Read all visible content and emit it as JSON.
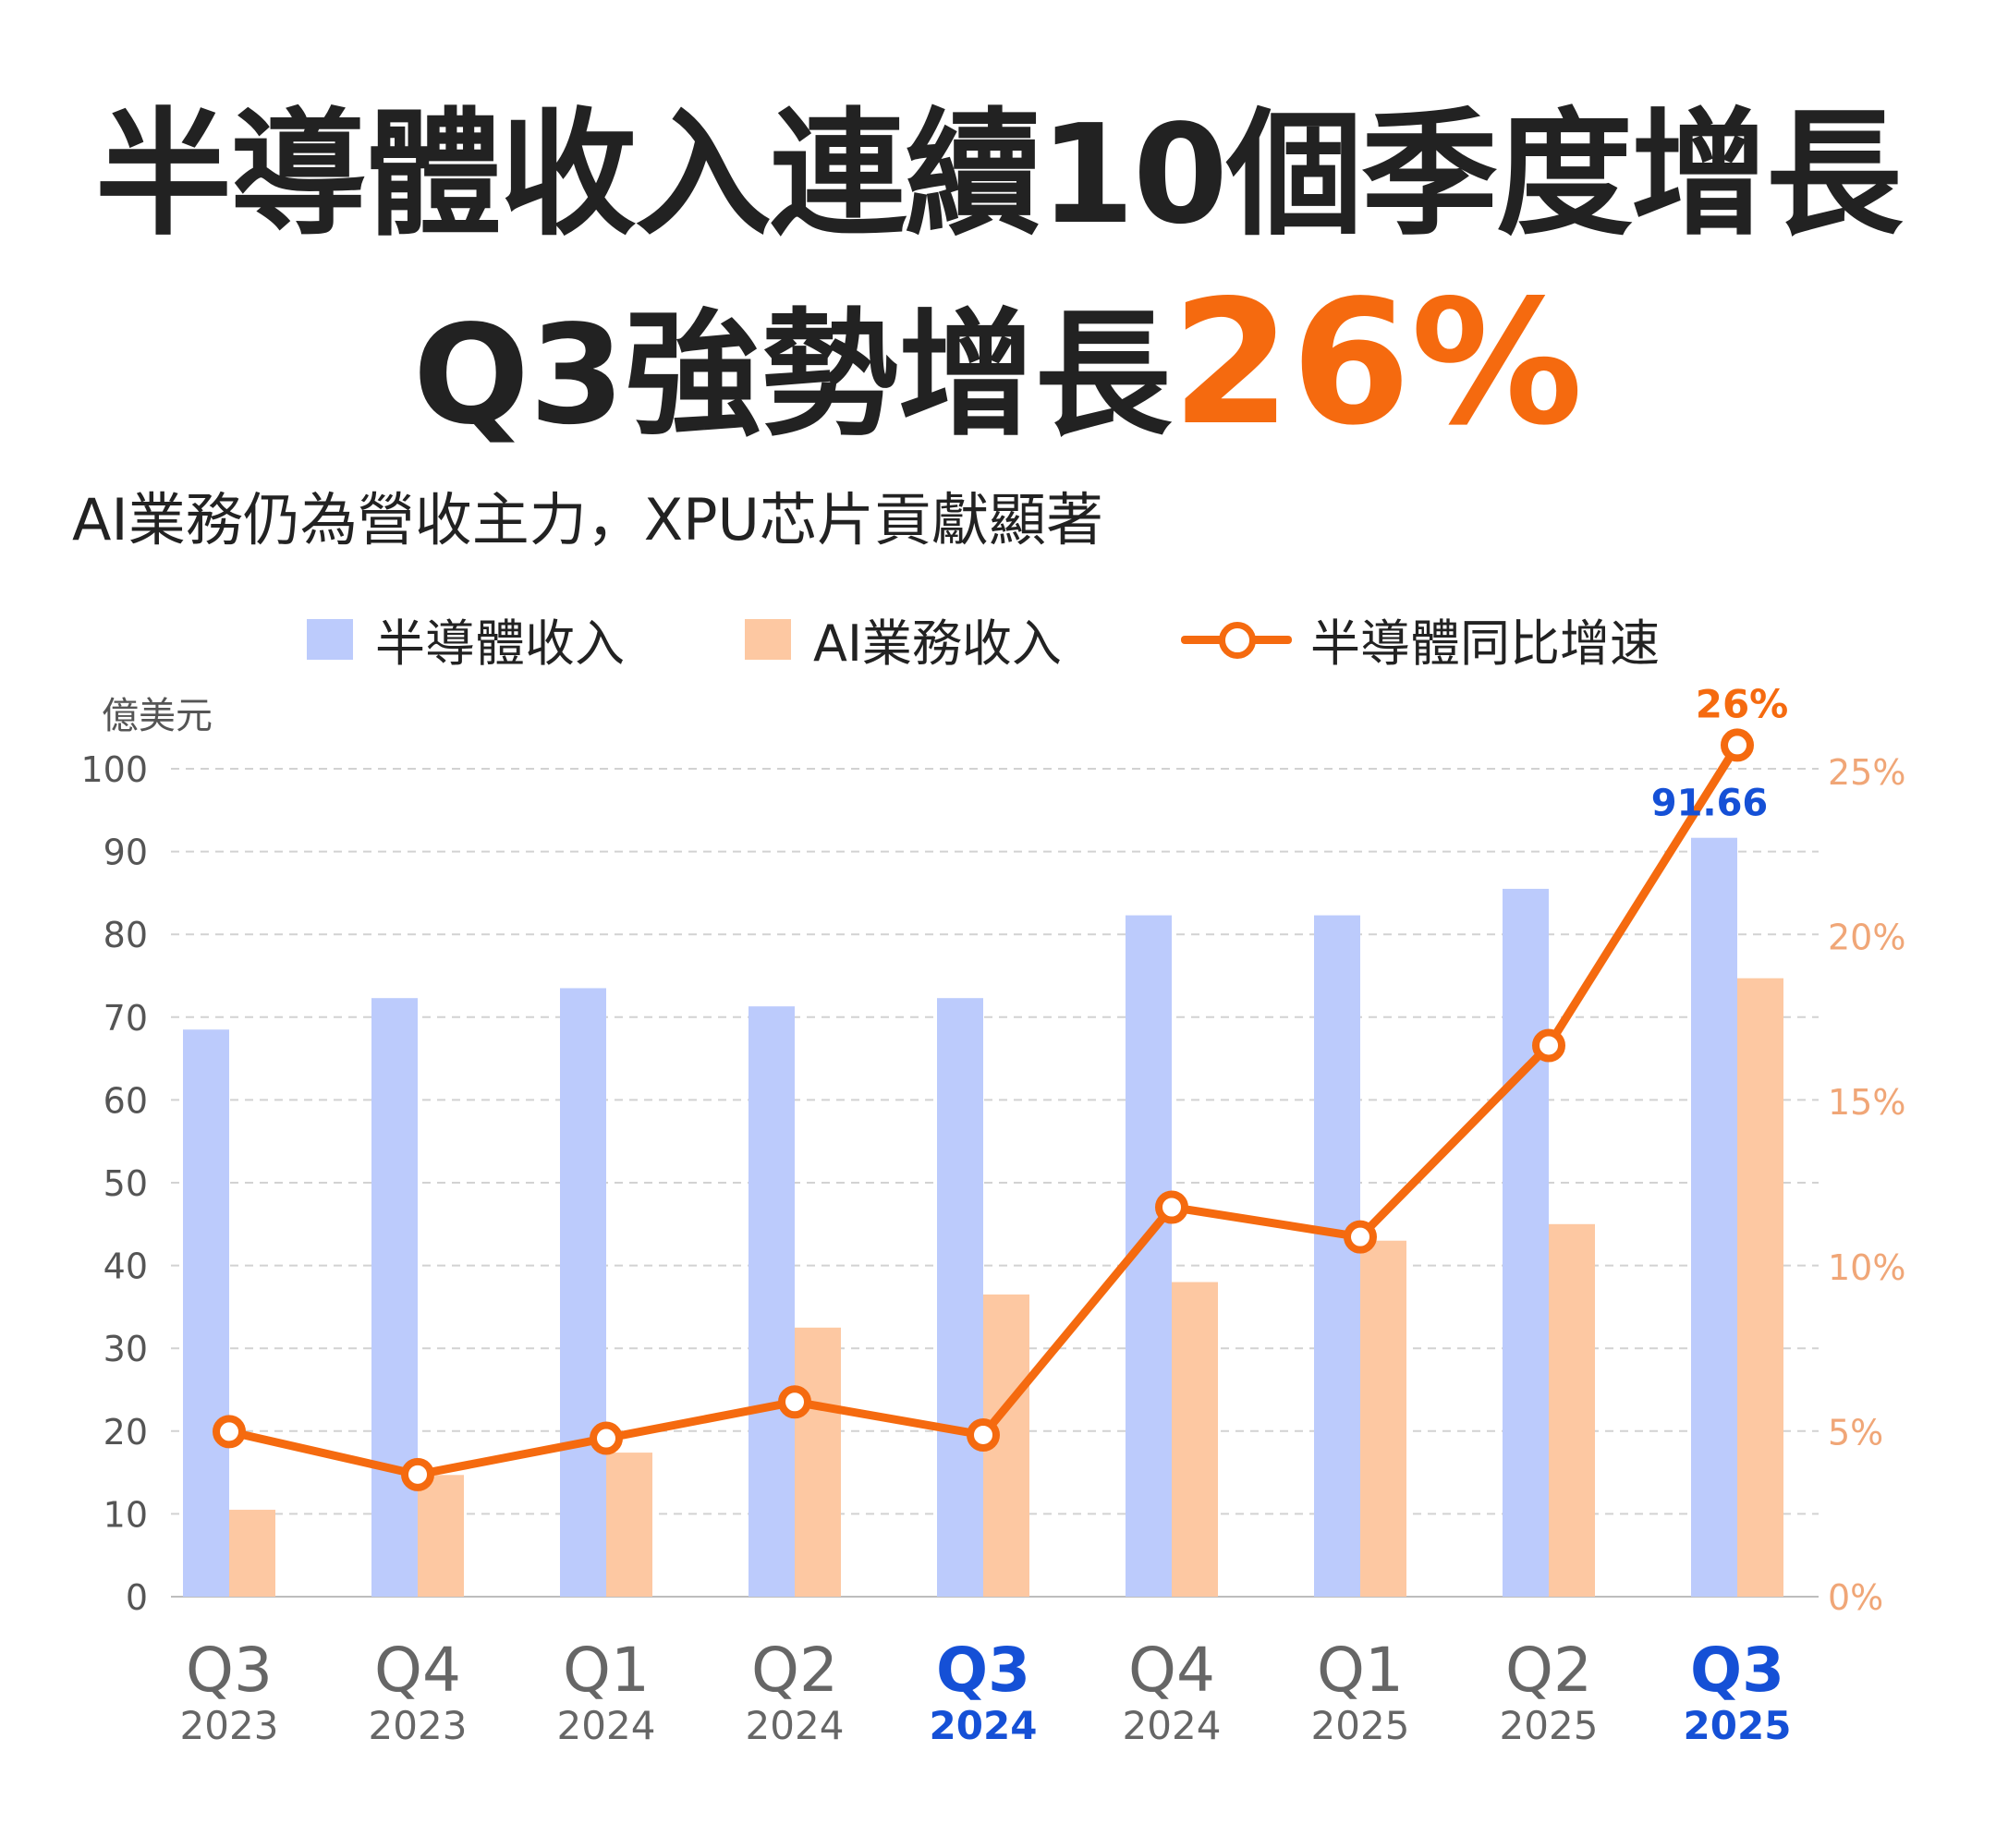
{
  "title": {
    "line1": "半導體收入連續10個季度增長",
    "line2_prefix": "Q3強勢增長",
    "line2_highlight": "26%"
  },
  "subtitle": "AI業務仍為營收主力，XPU芯片貢獻顯著",
  "legend": {
    "semi": "半導體收入",
    "ai": "AI業務收入",
    "growth": "半導體同比增速"
  },
  "colors": {
    "semi_bar": "#bccbfc",
    "ai_bar": "#fdc8a2",
    "growth_line": "#f56a0f",
    "highlight_label": "#1550d6",
    "right_axis": "#f0a677"
  },
  "chart_data": {
    "type": "bar",
    "categories": [
      "Q3 2023",
      "Q4 2023",
      "Q1 2024",
      "Q2 2024",
      "Q3 2024",
      "Q4 2024",
      "Q1 2025",
      "Q2 2025",
      "Q3 2025"
    ],
    "quarters": [
      "Q3",
      "Q4",
      "Q1",
      "Q2",
      "Q3",
      "Q4",
      "Q1",
      "Q2",
      "Q3"
    ],
    "years": [
      "2023",
      "2023",
      "2024",
      "2024",
      "2024",
      "2024",
      "2025",
      "2025",
      "2025"
    ],
    "highlighted": [
      false,
      false,
      false,
      false,
      true,
      false,
      false,
      false,
      true
    ],
    "series": [
      {
        "name": "半導體收入",
        "axis": "left",
        "values": [
          68.5,
          72.3,
          73.5,
          71.3,
          72.3,
          82.3,
          82.3,
          85.5,
          91.66
        ]
      },
      {
        "name": "AI業務收入",
        "axis": "left",
        "values": [
          10.5,
          14.7,
          17.4,
          32.5,
          36.5,
          38.0,
          43.0,
          45.0,
          74.7
        ]
      },
      {
        "name": "半導體同比增速",
        "axis": "right",
        "type": "line",
        "values": [
          5.0,
          3.7,
          4.8,
          5.9,
          4.9,
          11.8,
          10.9,
          16.7,
          25.8
        ]
      }
    ],
    "data_labels": [
      {
        "series": "半導體收入",
        "index": 8,
        "text": "91.66"
      },
      {
        "series": "半導體同比增速",
        "index": 8,
        "text": "26%"
      }
    ],
    "ylabel": "億美元",
    "ylim": [
      0,
      100
    ],
    "yticks": [
      "0",
      "10",
      "20",
      "30",
      "40",
      "50",
      "60",
      "70",
      "80",
      "90",
      "100"
    ],
    "y2lim": [
      0,
      25
    ],
    "y2ticks": [
      "0%",
      "5%",
      "10%",
      "15%",
      "20%",
      "25%"
    ],
    "grid": true,
    "legend_position": "top"
  }
}
